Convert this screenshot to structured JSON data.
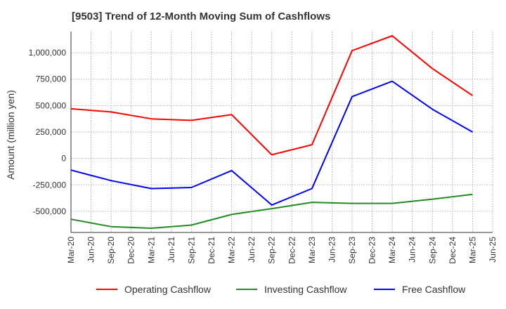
{
  "chart_data": {
    "type": "line",
    "title": "[9503]  Trend of 12-Month Moving Sum of Cashflows",
    "xlabel": "",
    "ylabel": "Amount (million yen)",
    "ylim": [
      -700000,
      1200000
    ],
    "yticks": [
      1000000,
      750000,
      500000,
      250000,
      0,
      -250000,
      -500000
    ],
    "ytick_labels": [
      "1,000,000",
      "750,000",
      "500,000",
      "250,000",
      "0",
      "-250,000",
      "-500,000"
    ],
    "categories": [
      "Mar-20",
      "Jun-20",
      "Sep-20",
      "Dec-20",
      "Mar-21",
      "Jun-21",
      "Sep-21",
      "Dec-21",
      "Mar-22",
      "Jun-22",
      "Sep-22",
      "Dec-22",
      "Mar-23",
      "Jun-23",
      "Sep-23",
      "Dec-23",
      "Mar-24",
      "Jun-24",
      "Sep-24",
      "Dec-24",
      "Mar-25",
      "Jun-25"
    ],
    "grid": true,
    "legend_position": "bottom",
    "series": [
      {
        "name": "Operating Cashflow",
        "color": "#ff0000",
        "values": [
          470000,
          null,
          440000,
          null,
          375000,
          null,
          360000,
          null,
          415000,
          null,
          35000,
          null,
          130000,
          null,
          1020000,
          null,
          1160000,
          null,
          850000,
          null,
          595000,
          null
        ]
      },
      {
        "name": "Investing Cashflow",
        "color": "#228b22",
        "values": [
          -575000,
          null,
          -645000,
          null,
          -660000,
          null,
          -630000,
          null,
          -530000,
          null,
          -475000,
          null,
          -415000,
          null,
          -425000,
          null,
          -425000,
          null,
          -385000,
          null,
          -340000,
          null
        ]
      },
      {
        "name": "Free Cashflow",
        "color": "#0000ff",
        "values": [
          -110000,
          null,
          -210000,
          null,
          -285000,
          null,
          -275000,
          null,
          -115000,
          null,
          -440000,
          null,
          -285000,
          null,
          585000,
          null,
          730000,
          null,
          465000,
          null,
          250000,
          null
        ]
      }
    ]
  }
}
